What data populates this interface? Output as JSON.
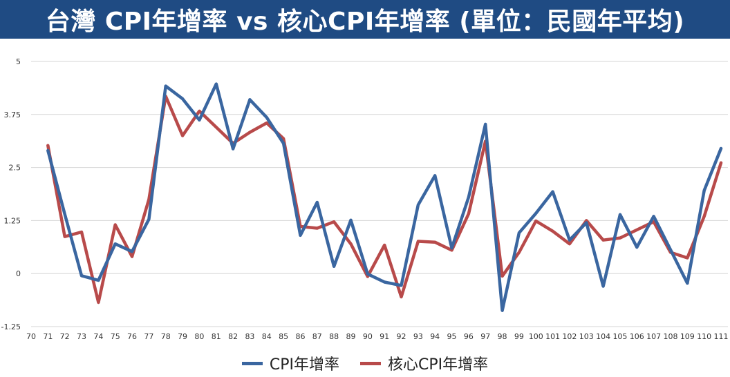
{
  "header": {
    "title": "台灣 CPI年增率 vs 核心CPI年增率 (單位：民國年平均)",
    "background": "#1f4b83"
  },
  "chart_data": {
    "type": "line",
    "title": "台灣 CPI年增率 vs 核心CPI年增率 (單位：民國年平均)",
    "xlabel": "",
    "ylabel": "",
    "x": [
      "70",
      "71",
      "72",
      "73",
      "74",
      "75",
      "76",
      "77",
      "78",
      "79",
      "80",
      "81",
      "82",
      "83",
      "84",
      "85",
      "86",
      "87",
      "88",
      "89",
      "90",
      "91",
      "92",
      "93",
      "94",
      "95",
      "96",
      "97",
      "98",
      "99",
      "100",
      "101",
      "102",
      "103",
      "104",
      "105",
      "106",
      "107",
      "108",
      "109",
      "110",
      "111"
    ],
    "y_ticks": [
      "5",
      "3.75",
      "2.5",
      "1.25",
      "0",
      "-1.25"
    ],
    "ylim": [
      -1.25,
      5
    ],
    "grid": true,
    "legend_position": "bottom",
    "series": [
      {
        "name": "CPI年增率",
        "color": "#3a66a0",
        "values": [
          null,
          2.9,
          1.4,
          -0.05,
          -0.16,
          0.7,
          0.52,
          1.28,
          4.42,
          4.12,
          3.62,
          4.47,
          2.94,
          4.1,
          3.68,
          3.07,
          0.9,
          1.68,
          0.17,
          1.26,
          -0.01,
          -0.2,
          -0.28,
          1.62,
          2.31,
          0.6,
          1.8,
          3.52,
          -0.87,
          0.96,
          1.42,
          1.93,
          0.79,
          1.2,
          -0.3,
          1.39,
          0.62,
          1.35,
          0.56,
          -0.23,
          1.96,
          2.95
        ]
      },
      {
        "name": "核心CPI年增率",
        "color": "#b84a4a",
        "values": [
          null,
          3.02,
          0.87,
          0.98,
          -0.68,
          1.15,
          0.4,
          1.75,
          4.18,
          3.25,
          3.83,
          3.45,
          3.07,
          3.33,
          3.55,
          3.18,
          1.11,
          1.07,
          1.22,
          0.7,
          -0.07,
          0.67,
          -0.55,
          0.76,
          0.74,
          0.55,
          1.41,
          3.12,
          -0.06,
          0.5,
          1.24,
          1.0,
          0.7,
          1.25,
          0.79,
          0.84,
          1.03,
          1.22,
          0.5,
          0.37,
          1.35,
          2.61
        ]
      }
    ]
  }
}
